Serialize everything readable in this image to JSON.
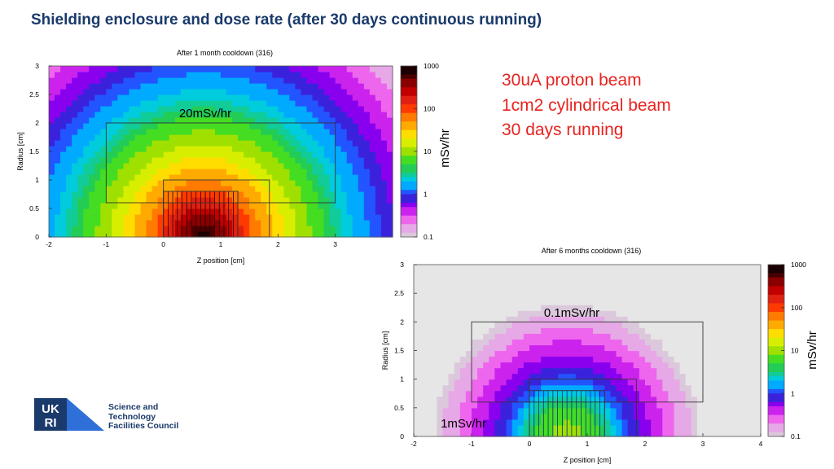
{
  "slide": {
    "title": "Shielding enclosure and dose rate (after 30 days continuous running)",
    "notes": [
      "30uA proton beam",
      "1cm2 cylindrical beam",
      "30 days running"
    ]
  },
  "logo": {
    "mark": "UKRI",
    "lines": [
      "Science and",
      "Technology",
      "Facilities Council"
    ]
  },
  "chart_data": [
    {
      "type": "heatmap",
      "title": "After 1 month cooldown (316)",
      "xlabel": "Z position [cm]",
      "ylabel": "Radius [cm]",
      "xlim": [
        -2,
        4
      ],
      "ylim": [
        0,
        3
      ],
      "xticks": [
        "-2",
        "-1",
        "0",
        "1",
        "2",
        "3"
      ],
      "yticks": [
        "0",
        "0.5",
        "1",
        "1.5",
        "2",
        "2.5",
        "3"
      ],
      "colorbar": {
        "label": "mSv/hr",
        "scale": "log",
        "ticks": [
          "1000",
          "100",
          "10",
          "1",
          "0.1"
        ],
        "range": [
          0.1,
          1000
        ]
      },
      "annotations": [
        "20mSv/hr"
      ],
      "peak_dose": 1000,
      "source_center": [
        0.7,
        0
      ],
      "iso_dose_radii": [
        {
          "dose": 200,
          "radius": 0.55
        },
        {
          "dose": 50,
          "radius": 1.0
        },
        {
          "dose": 20,
          "radius": 1.4
        },
        {
          "dose": 5,
          "radius": 2.1
        },
        {
          "dose": 2,
          "radius": 2.5
        },
        {
          "dose": 1,
          "radius": 3.0
        }
      ],
      "boxes": [
        {
          "z": [
            -1,
            3
          ],
          "r": [
            0.6,
            2.0
          ]
        },
        {
          "z": [
            0,
            1.85
          ],
          "r": [
            0,
            1.0
          ]
        },
        {
          "z": [
            0,
            1.3
          ],
          "r": [
            0,
            0.8
          ]
        }
      ]
    },
    {
      "type": "heatmap",
      "title": "After 6 months cooldown (316)",
      "xlabel": "Z position [cm]",
      "ylabel": "Radius [cm]",
      "xlim": [
        -2,
        4
      ],
      "ylim": [
        0,
        3
      ],
      "xticks": [
        "-2",
        "-1",
        "0",
        "1",
        "2",
        "3",
        "4"
      ],
      "yticks": [
        "0",
        "0.5",
        "1",
        "1.5",
        "2",
        "2.5",
        "3"
      ],
      "colorbar": {
        "label": "mSv/hr",
        "scale": "log",
        "ticks": [
          "1000",
          "100",
          "10",
          "1",
          "0.1"
        ],
        "range": [
          0.1,
          1000
        ]
      },
      "annotations": [
        "0.1mSv/hr",
        "1mSv/hr"
      ],
      "peak_dose": 12,
      "source_center": [
        0.65,
        0
      ],
      "iso_dose_radii": [
        {
          "dose": 5,
          "radius": 0.55
        },
        {
          "dose": 1,
          "radius": 1.0
        },
        {
          "dose": 0.4,
          "radius": 1.5
        },
        {
          "dose": 0.1,
          "radius": 2.3
        }
      ],
      "boxes": [
        {
          "z": [
            -1,
            3
          ],
          "r": [
            0.6,
            2.0
          ]
        },
        {
          "z": [
            0,
            1.85
          ],
          "r": [
            0,
            1.0
          ]
        },
        {
          "z": [
            0,
            1.3
          ],
          "r": [
            0,
            0.8
          ]
        }
      ]
    }
  ]
}
